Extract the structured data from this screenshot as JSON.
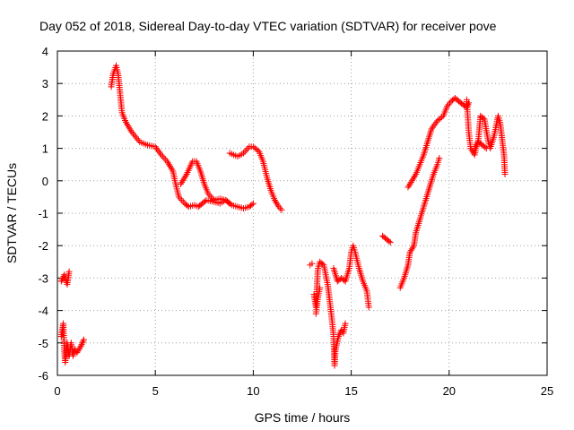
{
  "chart_data": {
    "type": "scatter",
    "title": "Day 052 of 2018, Sidereal Day-to-day VTEC variation (SDTVAR) for receiver pove",
    "xlabel": "GPS time / hours",
    "ylabel": "SDTVAR / TECUs",
    "xlim": [
      0,
      25
    ],
    "ylim": [
      -6,
      4
    ],
    "xticks": [
      0,
      5,
      10,
      15,
      20,
      25
    ],
    "yticks": [
      -6,
      -5,
      -4,
      -3,
      -2,
      -1,
      0,
      1,
      2,
      3,
      4
    ],
    "grid": true,
    "marker": "+",
    "color": "#ff0000",
    "segments": [
      [
        [
          0.2,
          -3.1
        ],
        [
          0.35,
          -2.9
        ],
        [
          0.5,
          -3.2
        ],
        [
          0.6,
          -2.8
        ]
      ],
      [
        [
          0.2,
          -4.8
        ],
        [
          0.3,
          -4.4
        ],
        [
          0.35,
          -5.2
        ],
        [
          0.4,
          -5.6
        ],
        [
          0.5,
          -5.0
        ],
        [
          0.6,
          -5.4
        ],
        [
          0.7,
          -5.0
        ],
        [
          0.8,
          -5.4
        ],
        [
          0.9,
          -5.2
        ],
        [
          1.0,
          -5.3
        ],
        [
          1.2,
          -5.1
        ],
        [
          1.35,
          -4.9
        ]
      ],
      [
        [
          2.75,
          2.9
        ],
        [
          2.85,
          3.3
        ],
        [
          3.0,
          3.55
        ],
        [
          3.1,
          3.3
        ],
        [
          3.2,
          2.7
        ],
        [
          3.3,
          2.1
        ],
        [
          3.5,
          1.8
        ],
        [
          3.8,
          1.5
        ],
        [
          4.2,
          1.2
        ],
        [
          4.6,
          1.1
        ],
        [
          5.0,
          1.05
        ],
        [
          5.3,
          0.8
        ],
        [
          5.6,
          0.6
        ],
        [
          5.9,
          0.3
        ],
        [
          6.0,
          0.0
        ],
        [
          6.2,
          -0.5
        ],
        [
          6.5,
          -0.7
        ],
        [
          6.7,
          -0.8
        ],
        [
          7.0,
          -0.75
        ],
        [
          7.2,
          -0.8
        ],
        [
          7.4,
          -0.7
        ],
        [
          7.6,
          -0.6
        ],
        [
          8.0,
          -0.65
        ],
        [
          8.3,
          -0.7
        ],
        [
          8.6,
          -0.6
        ],
        [
          8.9,
          -0.75
        ],
        [
          9.2,
          -0.8
        ],
        [
          9.5,
          -0.85
        ],
        [
          9.8,
          -0.8
        ],
        [
          10.0,
          -0.7
        ]
      ],
      [
        [
          6.3,
          -0.1
        ],
        [
          6.6,
          0.2
        ],
        [
          6.9,
          0.6
        ],
        [
          7.1,
          0.6
        ],
        [
          7.3,
          0.3
        ],
        [
          7.5,
          -0.1
        ],
        [
          7.7,
          -0.4
        ],
        [
          8.0,
          -0.6
        ],
        [
          8.3,
          -0.55
        ],
        [
          8.6,
          -0.6
        ],
        [
          8.8,
          -0.7
        ]
      ],
      [
        [
          8.8,
          0.85
        ],
        [
          9.2,
          0.75
        ],
        [
          9.5,
          0.85
        ],
        [
          9.8,
          1.05
        ],
        [
          10.0,
          1.05
        ],
        [
          10.3,
          0.9
        ],
        [
          10.5,
          0.6
        ],
        [
          10.7,
          0.1
        ],
        [
          10.9,
          -0.3
        ],
        [
          11.1,
          -0.6
        ],
        [
          11.3,
          -0.8
        ],
        [
          11.45,
          -0.9
        ]
      ],
      [
        [
          12.9,
          -2.6
        ],
        [
          13.0,
          -2.55
        ]
      ],
      [
        [
          13.1,
          -3.5
        ],
        [
          13.2,
          -3.9
        ],
        [
          13.3,
          -2.7
        ],
        [
          13.4,
          -2.5
        ],
        [
          13.6,
          -2.6
        ],
        [
          13.8,
          -3.2
        ],
        [
          14.0,
          -4.2
        ],
        [
          14.1,
          -4.8
        ],
        [
          14.15,
          -5.7
        ],
        [
          14.2,
          -5.2
        ],
        [
          14.35,
          -4.8
        ],
        [
          14.5,
          -4.6
        ],
        [
          14.6,
          -4.7
        ],
        [
          14.7,
          -4.4
        ]
      ],
      [
        [
          13.2,
          -4.1
        ],
        [
          13.3,
          -3.6
        ],
        [
          13.4,
          -3.3
        ]
      ],
      [
        [
          14.1,
          -2.7
        ],
        [
          14.3,
          -3.1
        ],
        [
          14.5,
          -3.0
        ],
        [
          14.7,
          -3.1
        ],
        [
          14.9,
          -2.7
        ],
        [
          15.0,
          -2.2
        ],
        [
          15.1,
          -2.0
        ],
        [
          15.2,
          -2.2
        ],
        [
          15.4,
          -2.7
        ],
        [
          15.6,
          -3.1
        ],
        [
          15.8,
          -3.4
        ],
        [
          15.9,
          -3.9
        ]
      ],
      [
        [
          16.6,
          -1.7
        ],
        [
          16.8,
          -1.8
        ],
        [
          17.0,
          -1.9
        ]
      ],
      [
        [
          17.5,
          -3.3
        ],
        [
          17.7,
          -3.0
        ],
        [
          17.9,
          -2.6
        ],
        [
          18.0,
          -2.2
        ],
        [
          18.2,
          -2.0
        ],
        [
          18.3,
          -1.6
        ],
        [
          18.5,
          -1.2
        ],
        [
          18.8,
          -0.6
        ],
        [
          19.0,
          -0.2
        ],
        [
          19.2,
          0.2
        ],
        [
          19.4,
          0.5
        ],
        [
          19.5,
          0.7
        ]
      ],
      [
        [
          17.9,
          -0.2
        ],
        [
          18.1,
          0.0
        ],
        [
          18.3,
          0.2
        ],
        [
          18.5,
          0.5
        ],
        [
          18.7,
          0.8
        ],
        [
          18.9,
          1.2
        ],
        [
          19.1,
          1.6
        ],
        [
          19.4,
          1.85
        ],
        [
          19.7,
          2.0
        ],
        [
          19.9,
          2.3
        ],
        [
          20.1,
          2.45
        ],
        [
          20.3,
          2.55
        ],
        [
          20.5,
          2.45
        ],
        [
          20.7,
          2.35
        ],
        [
          20.9,
          2.25
        ],
        [
          21.0,
          2.4
        ]
      ],
      [
        [
          20.9,
          2.5
        ],
        [
          21.0,
          1.5
        ],
        [
          21.1,
          1.0
        ],
        [
          21.3,
          0.8
        ],
        [
          21.5,
          1.3
        ],
        [
          21.6,
          2.0
        ],
        [
          21.8,
          1.9
        ],
        [
          22.0,
          1.2
        ],
        [
          22.1,
          1.0
        ],
        [
          22.3,
          1.4
        ],
        [
          22.5,
          2.0
        ],
        [
          22.6,
          1.8
        ],
        [
          22.8,
          0.8
        ],
        [
          22.85,
          0.2
        ]
      ],
      [
        [
          21.3,
          1.0
        ],
        [
          21.5,
          1.2
        ],
        [
          21.7,
          1.1
        ],
        [
          21.9,
          1.0
        ]
      ]
    ]
  }
}
